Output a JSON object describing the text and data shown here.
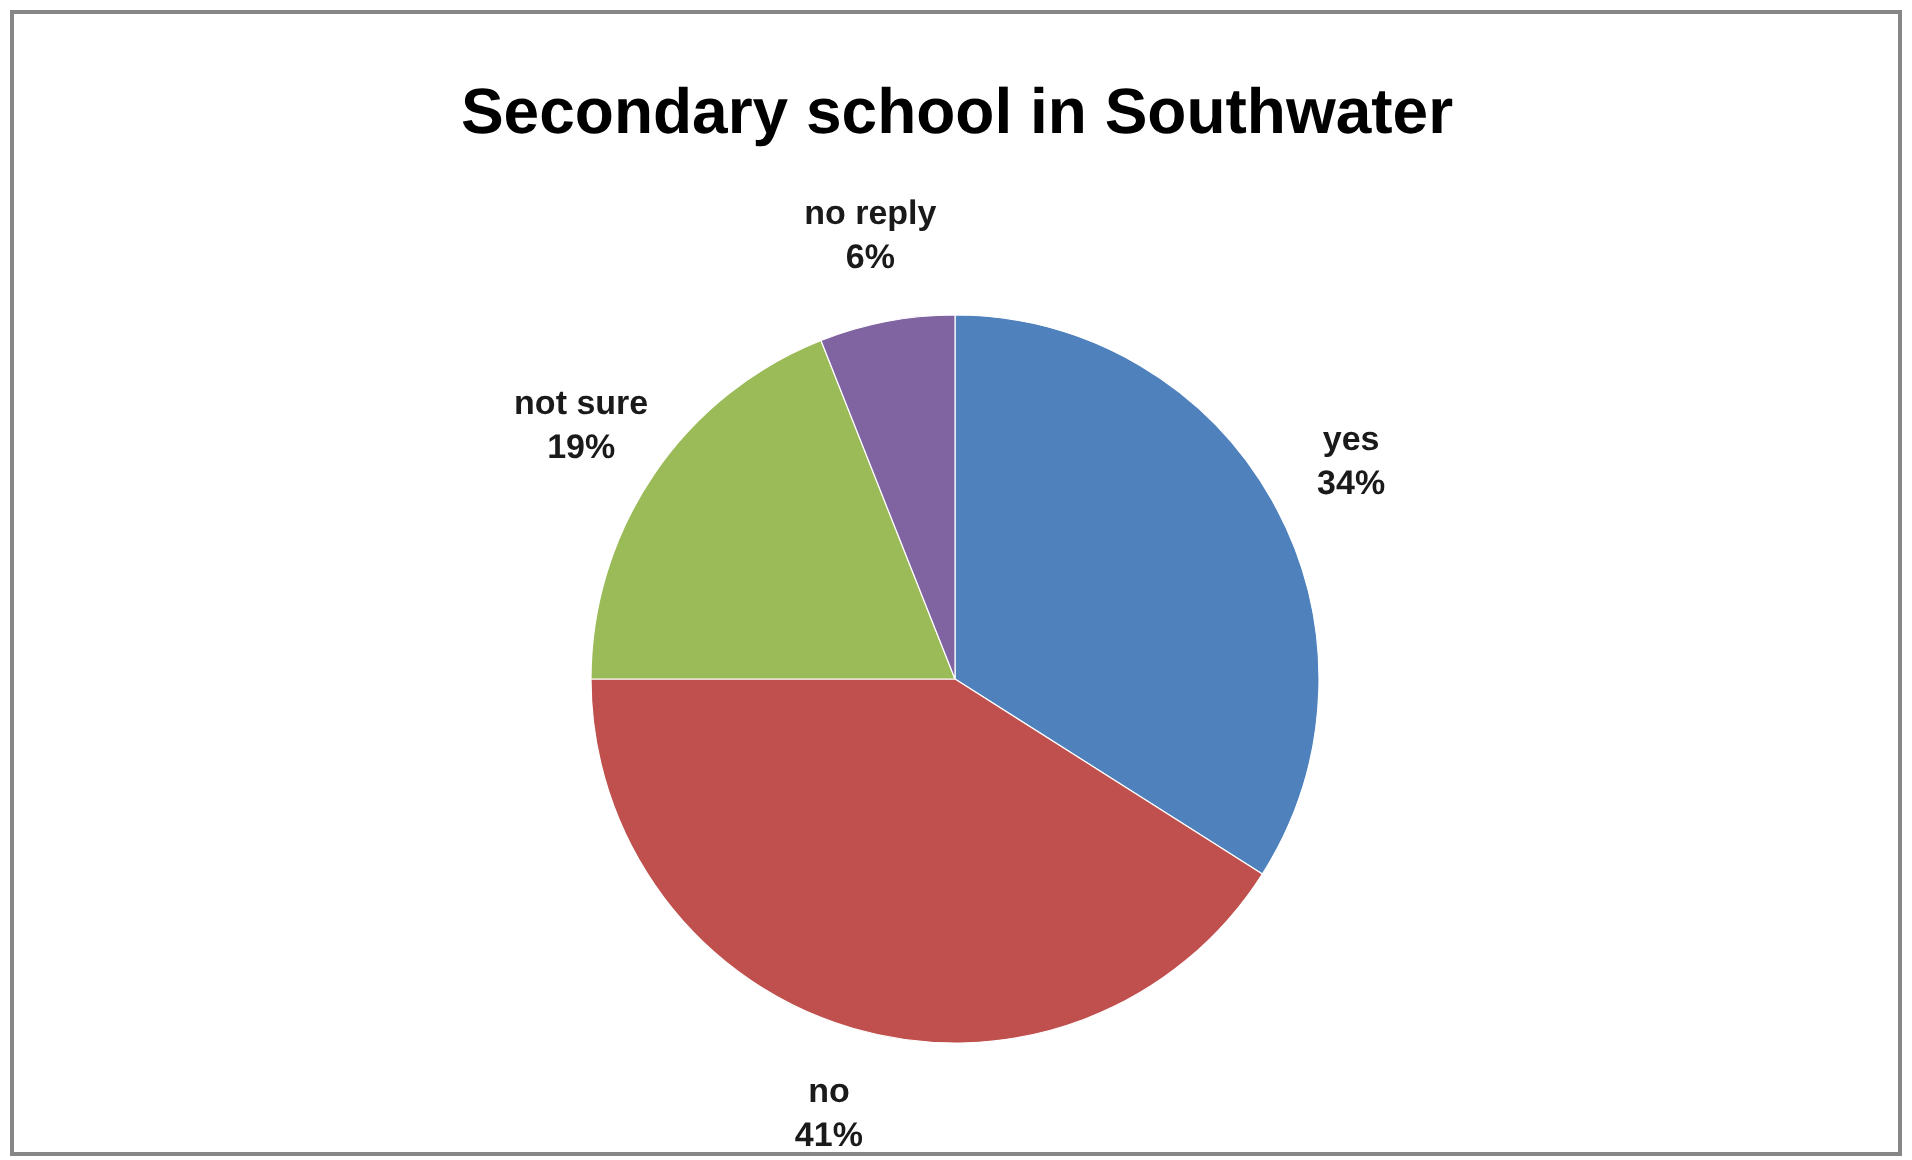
{
  "chart_data": {
    "type": "pie",
    "title": "Secondary school in Southwater",
    "categories": [
      "yes",
      "no",
      "not sure",
      "no reply"
    ],
    "values": [
      34,
      41,
      19,
      6
    ],
    "colors": [
      "#4f81bd",
      "#c0504d",
      "#9bbb59",
      "#8064a2"
    ],
    "value_labels": [
      "34%",
      "41%",
      "19%",
      "6%"
    ]
  }
}
